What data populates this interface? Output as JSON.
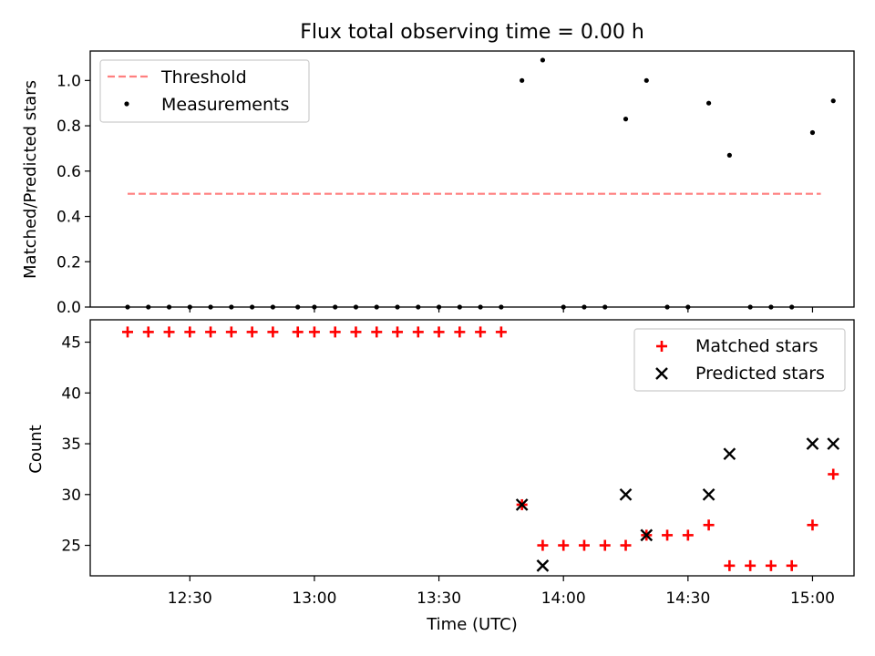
{
  "chart_data": [
    {
      "type": "scatter",
      "title": "Flux total observing time = 0.00 h",
      "xlabel": "",
      "ylabel": "Matched/Predicted stars",
      "ylim": [
        0,
        1.13
      ],
      "yticks": [
        "0.0",
        "0.2",
        "0.4",
        "0.6",
        "0.8",
        "1.0"
      ],
      "legend_position": "top-left",
      "threshold": {
        "name": "Threshold",
        "value": 0.5,
        "color": "#ff7f7f",
        "x_start": "12:15",
        "x_end": "15:02"
      },
      "series": [
        {
          "name": "Measurements",
          "color": "#000000",
          "points": [
            [
              "12:15",
              0
            ],
            [
              "12:20",
              0
            ],
            [
              "12:25",
              0
            ],
            [
              "12:30",
              0
            ],
            [
              "12:35",
              0
            ],
            [
              "12:40",
              0
            ],
            [
              "12:45",
              0
            ],
            [
              "12:50",
              0
            ],
            [
              "12:56",
              0
            ],
            [
              "13:00",
              0
            ],
            [
              "13:05",
              0
            ],
            [
              "13:10",
              0
            ],
            [
              "13:15",
              0
            ],
            [
              "13:20",
              0
            ],
            [
              "13:25",
              0
            ],
            [
              "13:30",
              0
            ],
            [
              "13:35",
              0
            ],
            [
              "13:40",
              0
            ],
            [
              "13:45",
              0
            ],
            [
              "13:50",
              1.0
            ],
            [
              "13:55",
              1.09
            ],
            [
              "14:00",
              0
            ],
            [
              "14:05",
              0
            ],
            [
              "14:10",
              0
            ],
            [
              "14:15",
              0.83
            ],
            [
              "14:20",
              1.0
            ],
            [
              "14:25",
              0
            ],
            [
              "14:30",
              0
            ],
            [
              "14:35",
              0.9
            ],
            [
              "14:40",
              0.67
            ],
            [
              "14:45",
              0
            ],
            [
              "14:50",
              0
            ],
            [
              "14:55",
              0
            ],
            [
              "15:00",
              0.77
            ],
            [
              "15:05",
              0.91
            ]
          ]
        }
      ]
    },
    {
      "type": "scatter",
      "title": "",
      "xlabel": "Time (UTC)",
      "ylabel": "Count",
      "ylim": [
        22,
        47.2
      ],
      "xlim": [
        "12:06",
        "15:10"
      ],
      "yticks": [
        "25",
        "30",
        "35",
        "40",
        "45"
      ],
      "xticks": [
        "12:30",
        "13:00",
        "13:30",
        "14:00",
        "14:30",
        "15:00"
      ],
      "legend_position": "top-right",
      "series": [
        {
          "name": "Matched stars",
          "marker": "plus",
          "color": "#ff0000",
          "points": [
            [
              "12:15",
              46
            ],
            [
              "12:20",
              46
            ],
            [
              "12:25",
              46
            ],
            [
              "12:30",
              46
            ],
            [
              "12:35",
              46
            ],
            [
              "12:40",
              46
            ],
            [
              "12:45",
              46
            ],
            [
              "12:50",
              46
            ],
            [
              "12:56",
              46
            ],
            [
              "13:00",
              46
            ],
            [
              "13:05",
              46
            ],
            [
              "13:10",
              46
            ],
            [
              "13:15",
              46
            ],
            [
              "13:20",
              46
            ],
            [
              "13:25",
              46
            ],
            [
              "13:30",
              46
            ],
            [
              "13:35",
              46
            ],
            [
              "13:40",
              46
            ],
            [
              "13:45",
              46
            ],
            [
              "13:50",
              29
            ],
            [
              "13:55",
              25
            ],
            [
              "14:00",
              25
            ],
            [
              "14:05",
              25
            ],
            [
              "14:10",
              25
            ],
            [
              "14:15",
              25
            ],
            [
              "14:20",
              26
            ],
            [
              "14:25",
              26
            ],
            [
              "14:30",
              26
            ],
            [
              "14:35",
              27
            ],
            [
              "14:40",
              23
            ],
            [
              "14:45",
              23
            ],
            [
              "14:50",
              23
            ],
            [
              "14:55",
              23
            ],
            [
              "15:00",
              27
            ],
            [
              "15:05",
              32
            ]
          ]
        },
        {
          "name": "Predicted stars",
          "marker": "x",
          "color": "#000000",
          "points": [
            [
              "13:50",
              29
            ],
            [
              "13:55",
              23
            ],
            [
              "14:15",
              30
            ],
            [
              "14:20",
              26
            ],
            [
              "14:35",
              30
            ],
            [
              "14:40",
              34
            ],
            [
              "15:00",
              35
            ],
            [
              "15:05",
              35
            ]
          ]
        }
      ]
    }
  ]
}
